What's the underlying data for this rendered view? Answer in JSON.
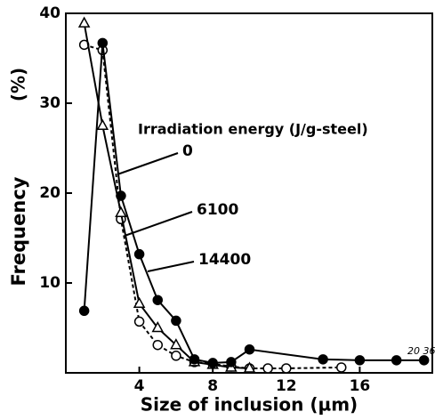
{
  "chart_data": {
    "type": "line",
    "xlabel": "Size of inclusion  (µm)",
    "ylabel": "Frequency",
    "ylabel_unit": "(%)",
    "legend_title": "Irradiation energy (J/g-steel)",
    "annotation": "20 36",
    "xlim": [
      0,
      20
    ],
    "ylim": [
      0,
      40
    ],
    "xticks": [
      4,
      8,
      12,
      16
    ],
    "yticks": [
      10,
      20,
      30,
      40
    ],
    "series": [
      {
        "name": "0",
        "marker": "open-circle",
        "dash": true,
        "color": "#000000",
        "x": [
          1,
          2,
          3,
          4,
          5,
          6,
          7,
          8,
          9,
          10,
          11,
          12,
          15
        ],
        "values": [
          36.5,
          35.9,
          17.1,
          5.7,
          3.1,
          1.9,
          1.2,
          1.0,
          0.7,
          0.5,
          0.5,
          0.5,
          0.6
        ]
      },
      {
        "name": "6100",
        "marker": "open-triangle",
        "dash": false,
        "color": "#000000",
        "x": [
          1,
          2,
          3,
          4,
          5,
          6,
          7,
          8,
          9,
          10
        ],
        "values": [
          38.9,
          27.5,
          17.8,
          7.7,
          5.0,
          3.1,
          1.2,
          0.9,
          0.6,
          0.5
        ]
      },
      {
        "name": "14400",
        "marker": "filled-circle",
        "dash": false,
        "color": "#000000",
        "x": [
          1,
          2,
          3,
          4,
          5,
          6,
          7,
          8,
          9,
          10,
          14,
          16,
          18,
          19.5
        ],
        "values": [
          6.9,
          36.7,
          19.7,
          13.2,
          8.1,
          5.8,
          1.5,
          1.1,
          1.2,
          2.6,
          1.5,
          1.4,
          1.4,
          1.4
        ]
      }
    ]
  }
}
